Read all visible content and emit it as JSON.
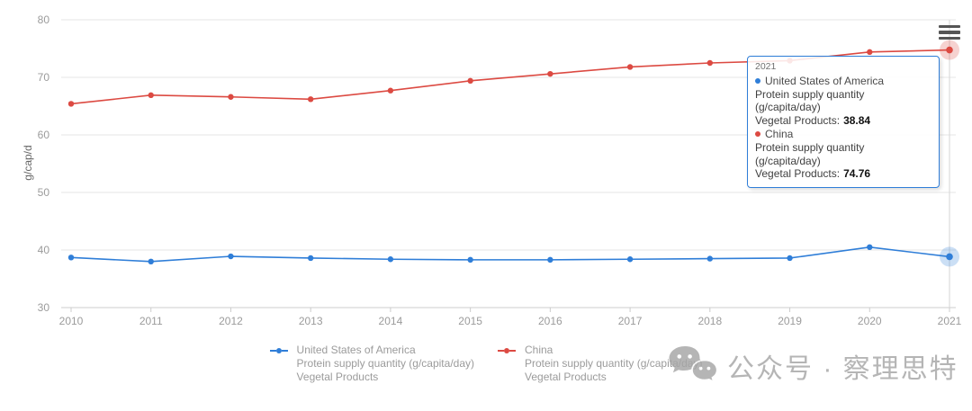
{
  "chart_data": {
    "type": "line",
    "x": [
      2010,
      2011,
      2012,
      2013,
      2014,
      2015,
      2016,
      2017,
      2018,
      2019,
      2020,
      2021
    ],
    "xlabel": "",
    "ylabel": "g/cap/d",
    "ylim": [
      30,
      80
    ],
    "yticks": [
      30,
      40,
      50,
      60,
      70,
      80
    ],
    "grid": true,
    "legend_position": "bottom",
    "highlighted_x": 2021,
    "series": [
      {
        "name": "United States of America",
        "metric": "Protein supply quantity (g/capita/day)",
        "category": "Vegetal Products",
        "color": "#2f7ed8",
        "values": [
          38.7,
          38.0,
          38.9,
          38.6,
          38.4,
          38.3,
          38.3,
          38.4,
          38.5,
          38.6,
          40.5,
          38.84
        ]
      },
      {
        "name": "China",
        "metric": "Protein supply quantity (g/capita/day)",
        "category": "Vegetal Products",
        "color": "#dc4a42",
        "values": [
          65.4,
          66.9,
          66.6,
          66.2,
          67.7,
          69.4,
          70.6,
          71.8,
          72.5,
          72.9,
          74.4,
          74.76
        ]
      }
    ]
  },
  "axes": {
    "y_title": "g/cap/d"
  },
  "tooltip": {
    "header": "2021",
    "entries": [
      {
        "name": "United States of America",
        "metric": "Protein supply quantity (g/capita/day)",
        "category_label": "Vegetal Products:",
        "value": "38.84"
      },
      {
        "name": "China",
        "metric": "Protein supply quantity (g/capita/day)",
        "category_label": "Vegetal Products:",
        "value": "74.76"
      }
    ]
  },
  "legend": {
    "items": [
      {
        "line1": "United States of America",
        "line2": "Protein supply quantity (g/capita/day)",
        "line3": "Vegetal Products"
      },
      {
        "line1": "China",
        "line2": "Protein supply quantity (g/capita/day)",
        "line3": "Vegetal Products"
      }
    ]
  },
  "toolbar": {
    "menu_icon": "hamburger-menu"
  },
  "watermark": {
    "icon": "wechat-icon",
    "text": "公众号 · 察理思特"
  },
  "colors": {
    "us_series": "#2f7ed8",
    "china_series": "#dc4a42",
    "gridline": "#e6e6e6",
    "axis_line": "#cccccc",
    "crosshair": "#d6d6d6",
    "tick_label": "#9b9b9b",
    "watermark_gray": "#a6a6a6"
  }
}
